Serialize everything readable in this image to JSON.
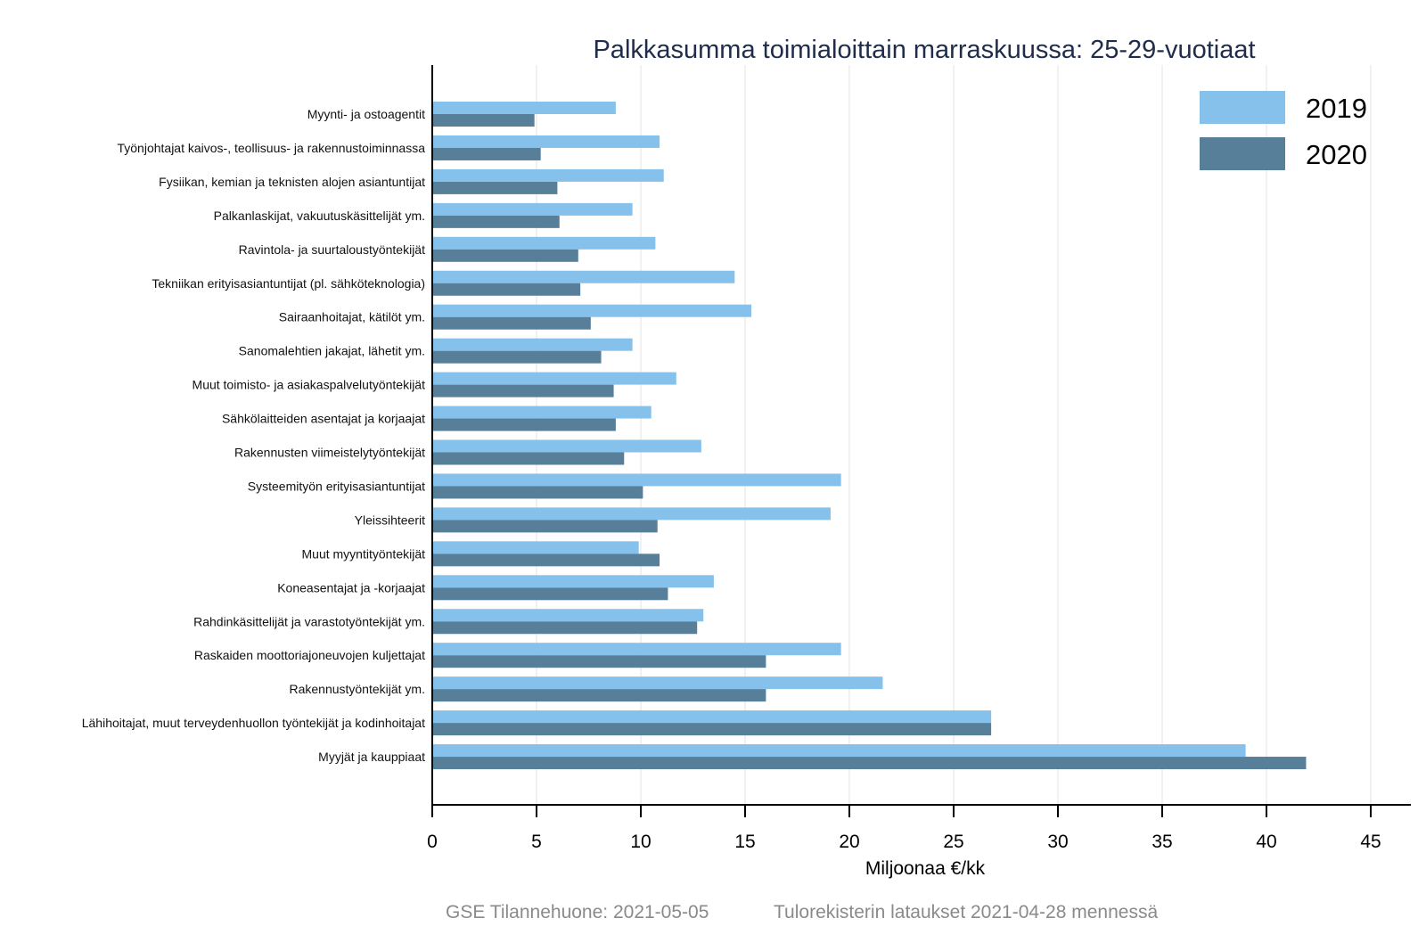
{
  "chart_data": {
    "type": "bar",
    "orientation": "horizontal",
    "title": "Palkkasumma toimialoittain marraskuussa: 25-29-vuotiaat",
    "xlabel": "Miljoonaa €/kk",
    "ylabel": "",
    "xlim": [
      0,
      46.5
    ],
    "xticks": [
      0,
      5,
      10,
      15,
      20,
      25,
      30,
      35,
      40,
      45
    ],
    "grid": "vertical",
    "legend_position": "top-right",
    "categories": [
      "Myynti- ja ostoagentit",
      "Työnjohtajat kaivos-, teollisuus- ja rakennustoiminnassa",
      "Fysiikan, kemian ja teknisten alojen asiantuntijat",
      "Palkanlaskijat, vakuutuskäsittelijät ym.",
      "Ravintola- ja suurtaloustyöntekijät",
      "Tekniikan erityisasiantuntijat (pl. sähköteknologia)",
      "Sairaanhoitajat, kätilöt ym.",
      "Sanomalehtien jakajat, lähetit ym.",
      "Muut toimisto- ja asiakaspalvelutyöntekijät",
      "Sähkölaitteiden asentajat ja korjaajat",
      "Rakennusten viimeistelytyöntekijät",
      "Systeemityön erityisasiantuntijat",
      "Yleissihteerit",
      "Muut myyntityöntekijät",
      "Koneasentajat ja -korjaajat",
      "Rahdinkäsittelijät ja varastotyöntekijät ym.",
      "Raskaiden moottoriajoneuvojen kuljettajat",
      "Rakennustyöntekijät ym.",
      "Lähihoitajat, muut terveydenhuollon työntekijät ja kodinhoitajat",
      "Myyjät ja kauppiaat"
    ],
    "series": [
      {
        "name": "2019",
        "color": "#85c1ea",
        "values": [
          8.8,
          10.9,
          11.1,
          9.6,
          10.7,
          14.5,
          15.3,
          9.6,
          11.7,
          10.5,
          12.9,
          19.6,
          19.1,
          9.9,
          13.5,
          13.0,
          19.6,
          21.6,
          26.8,
          39.0
        ]
      },
      {
        "name": "2020",
        "color": "#577f99",
        "values": [
          4.9,
          5.2,
          6.0,
          6.1,
          7.0,
          7.1,
          7.6,
          8.1,
          8.7,
          8.8,
          9.2,
          10.1,
          10.8,
          10.9,
          11.3,
          12.7,
          16.0,
          16.0,
          26.8,
          41.9
        ]
      }
    ]
  },
  "footer": {
    "source": "GSE Tilannehuone: 2021-05-05",
    "note": "Tulorekisterin lataukset 2021-04-28 mennessä"
  }
}
